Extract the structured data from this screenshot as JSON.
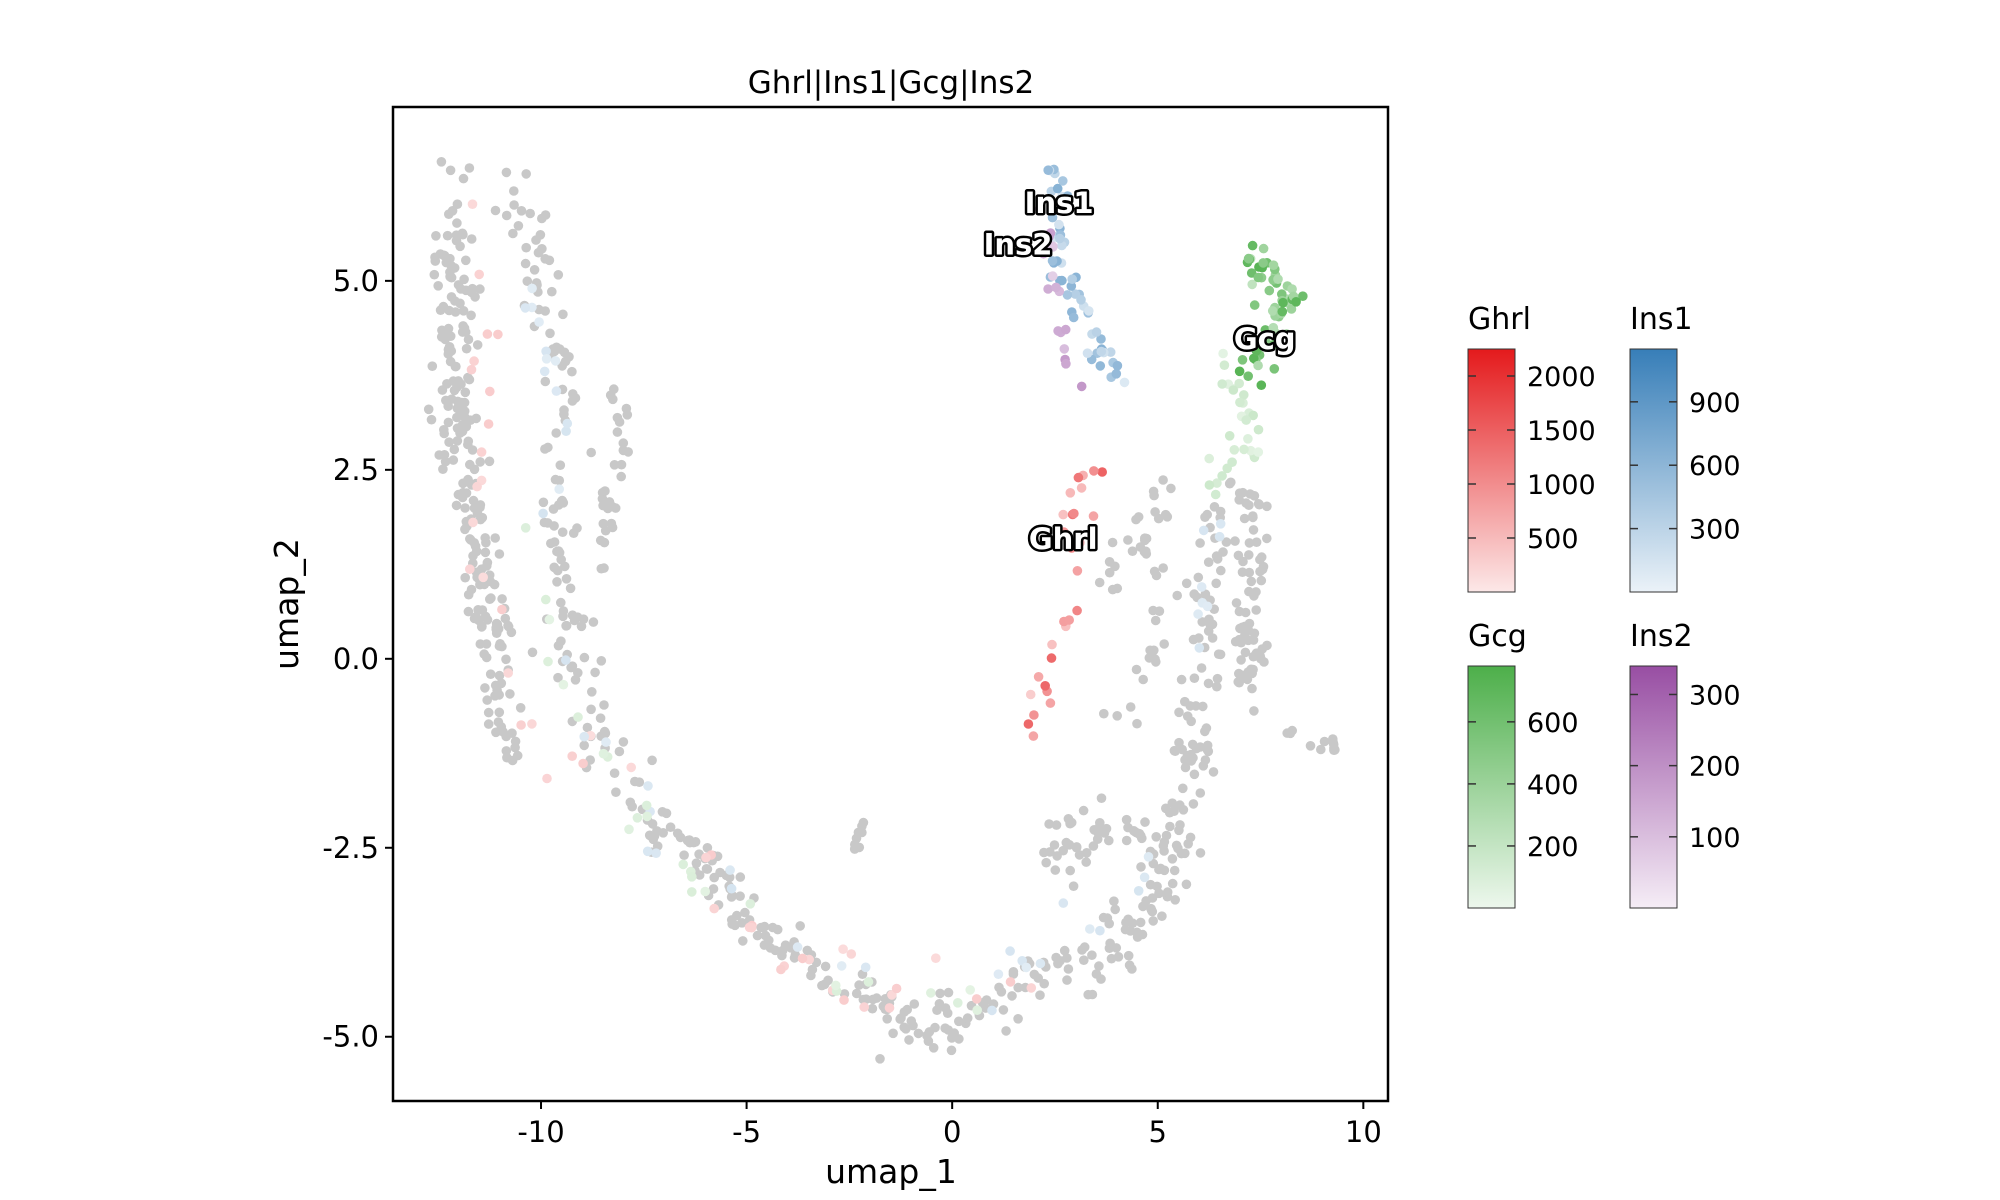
{
  "chart_data": {
    "type": "scatter",
    "title": "Ghrl|Ins1|Gcg|Ins2",
    "xlabel": "umap_1",
    "ylabel": "umap_2",
    "xlim": [
      -13.6,
      10.6
    ],
    "ylim": [
      -5.85,
      7.3
    ],
    "xticks": [
      {
        "value": -10,
        "label": "-10"
      },
      {
        "value": -5,
        "label": "-5"
      },
      {
        "value": 0,
        "label": "0"
      },
      {
        "value": 5,
        "label": "5"
      },
      {
        "value": 10,
        "label": "10"
      }
    ],
    "yticks": [
      {
        "value": 5.0,
        "label": "5.0"
      },
      {
        "value": 2.5,
        "label": "2.5"
      },
      {
        "value": 0.0,
        "label": "0.0"
      },
      {
        "value": -2.5,
        "label": "-2.5"
      },
      {
        "value": -5.0,
        "label": "-5.0"
      }
    ],
    "grid": false,
    "background_point_color": "#c8c8c8",
    "gene_labels": [
      {
        "text": "Ins1",
        "x": 2.6,
        "y": 5.9
      },
      {
        "text": "Ins2",
        "x": 1.6,
        "y": 5.35
      },
      {
        "text": "Gcg",
        "x": 7.6,
        "y": 4.1
      },
      {
        "text": "Ghrl",
        "x": 2.7,
        "y": 1.45
      }
    ],
    "legends": [
      {
        "name": "Ghrl",
        "color": "#e41a1c",
        "min": 0,
        "max": 2250,
        "ticks": [
          {
            "value": 500,
            "label": "500"
          },
          {
            "value": 1000,
            "label": "1000"
          },
          {
            "value": 1500,
            "label": "1500"
          },
          {
            "value": 2000,
            "label": "2000"
          }
        ]
      },
      {
        "name": "Ins1",
        "color": "#377eb8",
        "min": 0,
        "max": 1150,
        "ticks": [
          {
            "value": 300,
            "label": "300"
          },
          {
            "value": 600,
            "label": "600"
          },
          {
            "value": 900,
            "label": "900"
          }
        ]
      },
      {
        "name": "Gcg",
        "color": "#4daf4a",
        "min": 0,
        "max": 780,
        "ticks": [
          {
            "value": 200,
            "label": "200"
          },
          {
            "value": 400,
            "label": "400"
          },
          {
            "value": 600,
            "label": "600"
          }
        ]
      },
      {
        "name": "Ins2",
        "color": "#984ea3",
        "min": 0,
        "max": 340,
        "ticks": [
          {
            "value": 100,
            "label": "100"
          },
          {
            "value": 200,
            "label": "200"
          },
          {
            "value": 300,
            "label": "300"
          }
        ]
      }
    ],
    "point_groups": [
      {
        "gene": "none",
        "n": 230,
        "path": [
          [
            -12.0,
            6.0
          ],
          [
            -12.2,
            5.2
          ],
          [
            -12.0,
            4.2
          ],
          [
            -12.2,
            3.4
          ],
          [
            -11.8,
            2.4
          ],
          [
            -11.6,
            1.4
          ],
          [
            -11.2,
            0.4
          ],
          [
            -11.0,
            -0.8
          ],
          [
            -10.4,
            -1.4
          ]
        ],
        "spread": 0.55
      },
      {
        "gene": "none",
        "n": 130,
        "path": [
          [
            -10.6,
            6.2
          ],
          [
            -10.0,
            5.2
          ],
          [
            -9.6,
            4.0
          ],
          [
            -9.4,
            3.0
          ],
          [
            -9.6,
            2.0
          ],
          [
            -9.6,
            1.0
          ],
          [
            -9.2,
            0.0
          ],
          [
            -8.8,
            -0.8
          ],
          [
            -8.2,
            -1.4
          ],
          [
            -7.6,
            -1.8
          ]
        ],
        "spread": 0.5
      },
      {
        "gene": "none",
        "n": 30,
        "path": [
          [
            -8.2,
            3.6
          ],
          [
            -8.0,
            3.0
          ],
          [
            -8.4,
            2.0
          ],
          [
            -8.6,
            1.2
          ]
        ],
        "spread": 0.25
      },
      {
        "gene": "none",
        "n": 170,
        "path": [
          [
            -7.4,
            -2.2
          ],
          [
            -6.0,
            -2.6
          ],
          [
            -5.0,
            -3.4
          ],
          [
            -4.0,
            -3.8
          ],
          [
            -3.0,
            -4.2
          ],
          [
            -2.0,
            -4.5
          ],
          [
            -1.0,
            -4.8
          ],
          [
            0.0,
            -4.8
          ],
          [
            1.0,
            -4.5
          ],
          [
            2.0,
            -4.2
          ],
          [
            3.0,
            -4.0
          ]
        ],
        "spread": 0.35
      },
      {
        "gene": "none",
        "n": 150,
        "path": [
          [
            3.4,
            -4.2
          ],
          [
            4.6,
            -3.4
          ],
          [
            5.6,
            -2.6
          ],
          [
            5.9,
            -1.6
          ],
          [
            6.0,
            -0.4
          ],
          [
            6.2,
            0.6
          ],
          [
            6.4,
            1.6
          ],
          [
            6.6,
            2.4
          ]
        ],
        "spread": 0.45
      },
      {
        "gene": "none",
        "n": 70,
        "path": [
          [
            7.0,
            0.8
          ],
          [
            7.2,
            -0.2
          ],
          [
            7.4,
            1.6
          ],
          [
            7.0,
            2.2
          ]
        ],
        "spread": 0.4
      },
      {
        "gene": "none",
        "n": 45,
        "path": [
          [
            2.4,
            -2.6
          ],
          [
            3.2,
            -2.4
          ],
          [
            4.2,
            -2.2
          ],
          [
            5.0,
            -2.4
          ]
        ],
        "spread": 0.4
      },
      {
        "gene": "none",
        "n": 45,
        "path": [
          [
            3.8,
            1.0
          ],
          [
            4.6,
            1.6
          ],
          [
            5.2,
            2.2
          ],
          [
            5.0,
            0.4
          ],
          [
            4.6,
            -0.4
          ],
          [
            4.0,
            -1.0
          ]
        ],
        "spread": 0.4
      },
      {
        "gene": "none",
        "n": 12,
        "path": [
          [
            8.2,
            -1.0
          ],
          [
            8.8,
            -1.2
          ],
          [
            9.4,
            -1.1
          ]
        ],
        "spread": 0.15
      },
      {
        "gene": "none",
        "n": 8,
        "path": [
          [
            -2.1,
            -2.1
          ],
          [
            -2.4,
            -2.6
          ]
        ],
        "spread": 0.1
      },
      {
        "gene": "Ins1",
        "n": 55,
        "path": [
          [
            2.4,
            6.5
          ],
          [
            2.6,
            6.0
          ],
          [
            2.5,
            5.4
          ],
          [
            2.8,
            5.0
          ],
          [
            3.2,
            4.6
          ],
          [
            3.6,
            4.2
          ],
          [
            4.2,
            3.6
          ]
        ],
        "spread": 0.28,
        "level_range": [
          0.05,
          0.55
        ]
      },
      {
        "gene": "Ins2",
        "n": 18,
        "path": [
          [
            2.2,
            6.2
          ],
          [
            2.3,
            5.6
          ],
          [
            2.4,
            5.0
          ],
          [
            3.1,
            3.5
          ]
        ],
        "spread": 0.2,
        "level_range": [
          0.15,
          0.6
        ]
      },
      {
        "gene": "Gcg",
        "n": 60,
        "path": [
          [
            7.2,
            5.3
          ],
          [
            7.8,
            5.0
          ],
          [
            8.2,
            4.6
          ],
          [
            7.6,
            4.2
          ],
          [
            7.2,
            3.8
          ]
        ],
        "spread": 0.35,
        "level_range": [
          0.25,
          0.95
        ]
      },
      {
        "gene": "Gcg",
        "n": 30,
        "path": [
          [
            6.6,
            4.0
          ],
          [
            7.0,
            3.4
          ],
          [
            7.6,
            2.8
          ],
          [
            6.6,
            2.8
          ],
          [
            6.2,
            2.2
          ]
        ],
        "spread": 0.3,
        "level_range": [
          0.03,
          0.2
        ]
      },
      {
        "gene": "Ghrl",
        "n": 28,
        "path": [
          [
            4.0,
            2.8
          ],
          [
            3.4,
            2.3
          ],
          [
            2.8,
            2.0
          ],
          [
            3.0,
            1.0
          ],
          [
            2.8,
            0.4
          ],
          [
            2.4,
            0.0
          ],
          [
            2.0,
            -0.6
          ],
          [
            1.9,
            -1.2
          ]
        ],
        "spread": 0.25,
        "level_range": [
          0.1,
          0.65
        ]
      },
      {
        "gene": "Ghrl",
        "n": 45,
        "path": [
          [
            -12.0,
            6.0
          ],
          [
            -11.4,
            4.0
          ],
          [
            -11.6,
            2.0
          ],
          [
            -11.0,
            0.0
          ],
          [
            -10.5,
            -1.0
          ],
          [
            -8.0,
            -1.5
          ],
          [
            -4.5,
            -3.8
          ],
          [
            -1.0,
            -4.6
          ],
          [
            2.5,
            -4.0
          ]
        ],
        "spread": 0.45,
        "level_range": [
          0.03,
          0.12
        ]
      },
      {
        "gene": "Ins1",
        "n": 45,
        "path": [
          [
            -10.5,
            5.0
          ],
          [
            -9.5,
            3.0
          ],
          [
            -10.0,
            1.0
          ],
          [
            -9.2,
            -0.5
          ],
          [
            -7.0,
            -2.6
          ],
          [
            -3.0,
            -4.0
          ],
          [
            0.0,
            -4.6
          ],
          [
            5.0,
            -2.8
          ],
          [
            5.8,
            0.0
          ],
          [
            6.2,
            2.4
          ]
        ],
        "spread": 0.45,
        "level_range": [
          0.03,
          0.1
        ]
      },
      {
        "gene": "Gcg",
        "n": 25,
        "path": [
          [
            -11.0,
            4.2
          ],
          [
            -10.5,
            1.5
          ],
          [
            -9.0,
            -1.0
          ],
          [
            -6.0,
            -3.2
          ],
          [
            -2.0,
            -4.4
          ],
          [
            1.0,
            -4.6
          ]
        ],
        "spread": 0.45,
        "level_range": [
          0.03,
          0.1
        ]
      }
    ]
  }
}
